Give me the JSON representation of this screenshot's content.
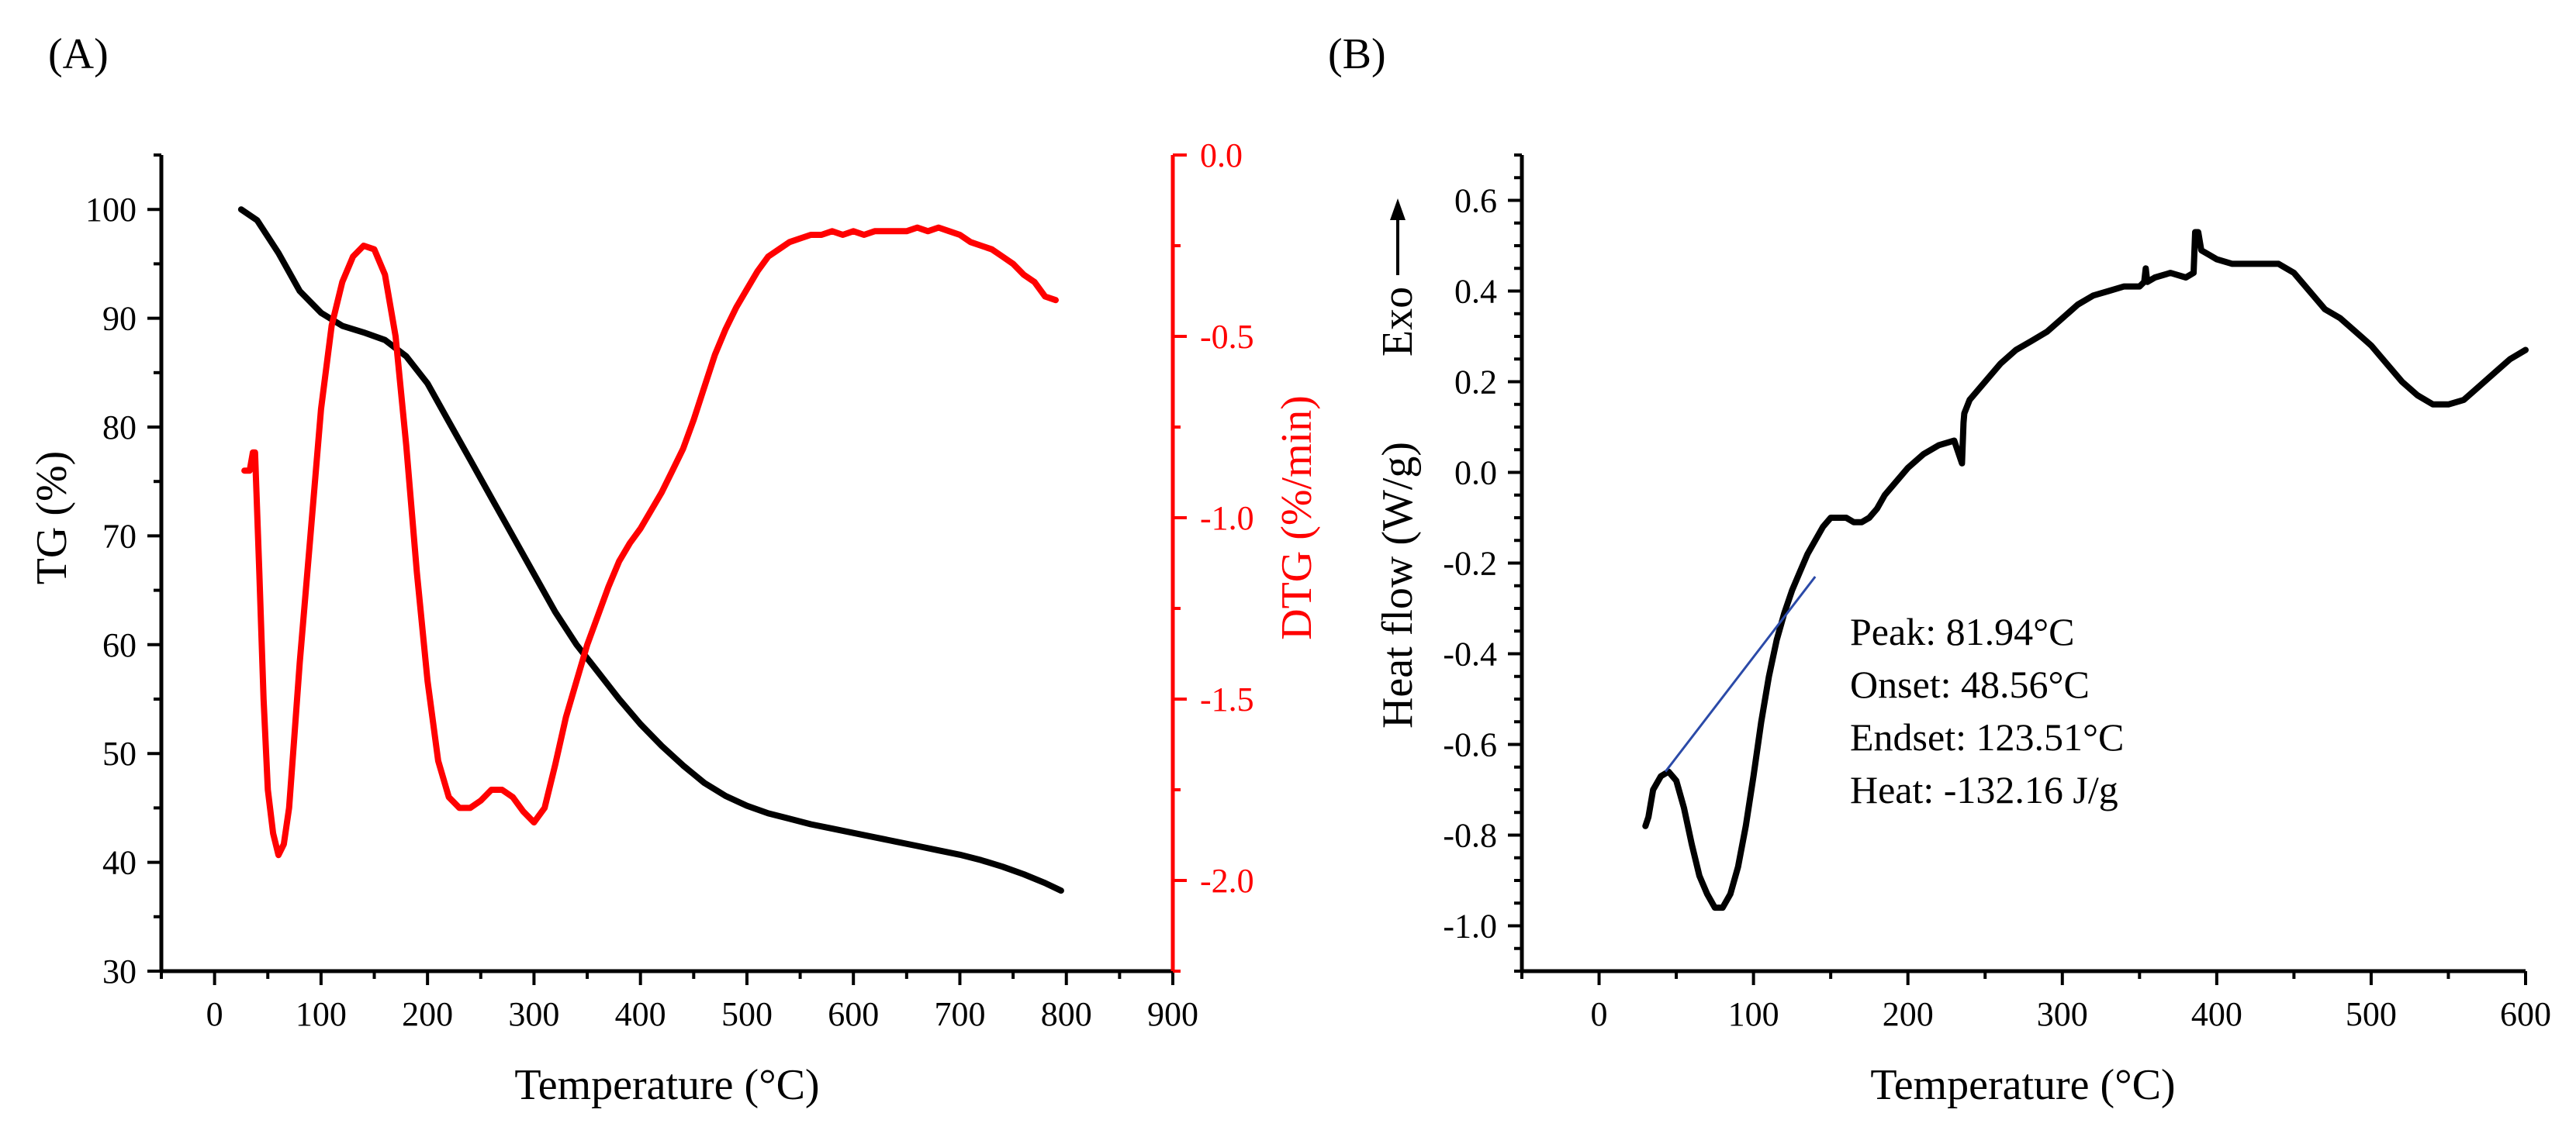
{
  "chart_data": [
    {
      "panel_label": "(A)",
      "type": "line",
      "xlabel": "Temperature (°C)",
      "ylabel_left": "TG (%)",
      "ylabel_right": "DTG (%/min)",
      "xlim": [
        -50,
        900
      ],
      "ylim_left": [
        30,
        105
      ],
      "ylim_right": [
        -2.25,
        0.0
      ],
      "x_ticks": [
        "0",
        "100",
        "200",
        "300",
        "400",
        "500",
        "600",
        "700",
        "800",
        "900"
      ],
      "y_left_ticks": [
        "30",
        "40",
        "50",
        "60",
        "70",
        "80",
        "90",
        "100"
      ],
      "y_right_ticks": [
        "0.0",
        "-0.5",
        "-1.0",
        "-1.5",
        "-2.0"
      ],
      "colors": {
        "tg": "#000000",
        "dtg": "#ff0000"
      },
      "series": [
        {
          "name": "TG",
          "axis": "left",
          "x": [
            25,
            40,
            60,
            80,
            100,
            120,
            140,
            160,
            180,
            200,
            220,
            240,
            260,
            280,
            300,
            320,
            340,
            360,
            380,
            400,
            420,
            440,
            460,
            480,
            500,
            520,
            540,
            560,
            580,
            600,
            620,
            640,
            660,
            680,
            700,
            720,
            740,
            760,
            780,
            795
          ],
          "values": [
            100,
            99,
            96,
            92.5,
            90.5,
            89.3,
            88.7,
            88,
            86.5,
            84,
            80.5,
            77,
            73.5,
            70,
            66.5,
            63,
            60,
            57.5,
            55,
            52.7,
            50.7,
            48.9,
            47.3,
            46.1,
            45.2,
            44.5,
            44,
            43.5,
            43.1,
            42.7,
            42.3,
            41.9,
            41.5,
            41.1,
            40.7,
            40.2,
            39.6,
            38.9,
            38.1,
            37.4
          ]
        },
        {
          "name": "DTG",
          "axis": "right",
          "x": [
            28,
            33,
            36,
            38,
            42,
            46,
            50,
            55,
            60,
            65,
            70,
            75,
            80,
            90,
            100,
            110,
            120,
            130,
            140,
            150,
            160,
            170,
            180,
            190,
            200,
            210,
            220,
            230,
            240,
            250,
            260,
            270,
            280,
            290,
            300,
            310,
            320,
            330,
            340,
            350,
            360,
            370,
            380,
            390,
            400,
            410,
            420,
            430,
            440,
            450,
            460,
            470,
            480,
            490,
            500,
            510,
            520,
            530,
            540,
            550,
            560,
            570,
            580,
            590,
            600,
            610,
            620,
            630,
            640,
            650,
            660,
            670,
            680,
            690,
            700,
            710,
            720,
            730,
            740,
            750,
            760,
            770,
            780,
            790
          ],
          "values": [
            -0.87,
            -0.87,
            -0.82,
            -0.82,
            -1.15,
            -1.5,
            -1.75,
            -1.87,
            -1.93,
            -1.9,
            -1.8,
            -1.6,
            -1.4,
            -1.05,
            -0.7,
            -0.47,
            -0.35,
            -0.28,
            -0.25,
            -0.26,
            -0.33,
            -0.5,
            -0.8,
            -1.15,
            -1.45,
            -1.67,
            -1.77,
            -1.8,
            -1.8,
            -1.78,
            -1.75,
            -1.75,
            -1.77,
            -1.81,
            -1.84,
            -1.8,
            -1.68,
            -1.55,
            -1.45,
            -1.35,
            -1.27,
            -1.19,
            -1.12,
            -1.07,
            -1.03,
            -0.98,
            -0.93,
            -0.87,
            -0.81,
            -0.73,
            -0.64,
            -0.55,
            -0.48,
            -0.42,
            -0.37,
            -0.32,
            -0.28,
            -0.26,
            -0.24,
            -0.23,
            -0.22,
            -0.22,
            -0.21,
            -0.22,
            -0.21,
            -0.22,
            -0.21,
            -0.21,
            -0.21,
            -0.21,
            -0.2,
            -0.21,
            -0.2,
            -0.21,
            -0.22,
            -0.24,
            -0.25,
            -0.26,
            -0.28,
            -0.3,
            -0.33,
            -0.35,
            -0.39,
            -0.4
          ]
        }
      ]
    },
    {
      "panel_label": "(B)",
      "type": "line",
      "xlabel": "Temperature (°C)",
      "ylabel": "Heat flow (W/g)",
      "exo_label": "Exo",
      "xlim": [
        -50,
        600
      ],
      "ylim": [
        -1.1,
        0.7
      ],
      "x_ticks": [
        "0",
        "100",
        "200",
        "300",
        "400",
        "500",
        "600"
      ],
      "y_ticks": [
        "0.6",
        "0.4",
        "0.2",
        "0.0",
        "-0.2",
        "-0.4",
        "-0.6",
        "-0.8",
        "-1.0"
      ],
      "colors": {
        "heat": "#000000",
        "baseline": "#2b4aa8"
      },
      "series": [
        {
          "name": "Heat flow",
          "x": [
            30,
            32,
            35,
            40,
            45,
            50,
            55,
            60,
            65,
            70,
            75,
            80,
            85,
            90,
            95,
            100,
            105,
            110,
            115,
            120,
            125,
            130,
            135,
            140,
            145,
            150,
            155,
            160,
            165,
            170,
            175,
            180,
            185,
            190,
            200,
            210,
            220,
            230,
            235,
            236,
            236.5,
            240,
            250,
            260,
            270,
            280,
            290,
            300,
            310,
            320,
            330,
            340,
            350,
            353,
            354,
            355,
            360,
            370,
            380,
            385,
            386,
            388,
            390,
            395,
            400,
            410,
            420,
            430,
            440,
            450,
            460,
            470,
            480,
            490,
            500,
            510,
            520,
            530,
            540,
            550,
            560,
            570,
            580,
            590,
            600
          ],
          "values": [
            -0.78,
            -0.76,
            -0.7,
            -0.67,
            -0.66,
            -0.68,
            -0.74,
            -0.82,
            -0.89,
            -0.93,
            -0.96,
            -0.96,
            -0.93,
            -0.87,
            -0.78,
            -0.67,
            -0.55,
            -0.45,
            -0.37,
            -0.31,
            -0.26,
            -0.22,
            -0.18,
            -0.15,
            -0.12,
            -0.1,
            -0.1,
            -0.1,
            -0.11,
            -0.11,
            -0.1,
            -0.08,
            -0.05,
            -0.03,
            0.01,
            0.04,
            0.06,
            0.07,
            0.02,
            0.11,
            0.13,
            0.16,
            0.2,
            0.24,
            0.27,
            0.29,
            0.31,
            0.34,
            0.37,
            0.39,
            0.4,
            0.41,
            0.41,
            0.42,
            0.45,
            0.42,
            0.43,
            0.44,
            0.43,
            0.44,
            0.53,
            0.53,
            0.49,
            0.48,
            0.47,
            0.46,
            0.46,
            0.46,
            0.46,
            0.44,
            0.4,
            0.36,
            0.34,
            0.31,
            0.28,
            0.24,
            0.2,
            0.17,
            0.15,
            0.15,
            0.16,
            0.19,
            0.22,
            0.25,
            0.27
          ]
        }
      ],
      "baseline": {
        "x": [
          43,
          140
        ],
        "values": [
          -0.66,
          -0.23
        ]
      },
      "annotations": [
        "Peak: 81.94°C",
        "Onset: 48.56°C",
        "Endset: 123.51°C",
        "Heat: -132.16 J/g"
      ]
    }
  ]
}
